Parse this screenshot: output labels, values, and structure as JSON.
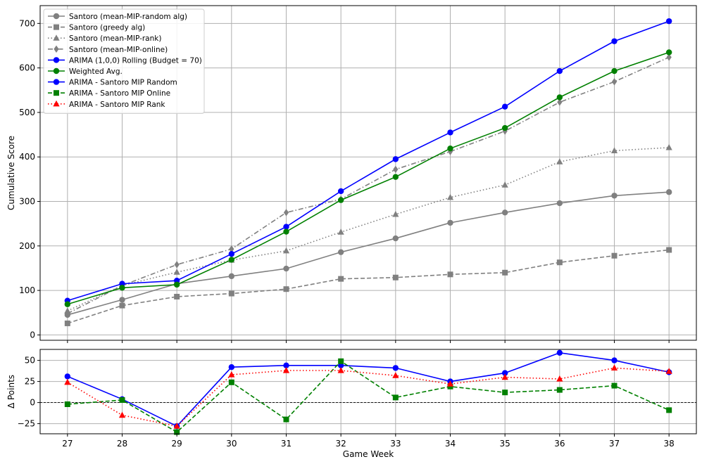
{
  "chart_data": [
    {
      "type": "line",
      "title": "",
      "xlabel": "",
      "ylabel": "Cumulative Score",
      "ylim": [
        -12,
        740
      ],
      "xlim": [
        26.5,
        38.5
      ],
      "yticks": [
        0,
        100,
        200,
        300,
        400,
        500,
        600,
        700
      ],
      "grid": true,
      "legend_position": "top-left",
      "x": [
        27,
        28,
        29,
        30,
        31,
        32,
        33,
        34,
        35,
        36,
        37,
        38
      ],
      "series": [
        {
          "name": "Santoro (mean-MIP-random alg)",
          "color": "#808080",
          "line": "solid",
          "marker": "circle",
          "values": [
            45,
            79,
            115,
            132,
            149,
            186,
            217,
            252,
            275,
            296,
            313,
            321
          ]
        },
        {
          "name": "Santoro (greedy alg)",
          "color": "#808080",
          "line": "dashed",
          "marker": "square",
          "values": [
            26,
            66,
            86,
            93,
            103,
            126,
            129,
            136,
            140,
            163,
            178,
            191
          ]
        },
        {
          "name": "Santoro (mean-MIP-rank)",
          "color": "#808080",
          "line": "dotted",
          "marker": "triangle",
          "values": [
            54,
            111,
            141,
            168,
            189,
            231,
            271,
            309,
            337,
            389,
            414,
            421
          ]
        },
        {
          "name": "Santoro (mean-MIP-online)",
          "color": "#808080",
          "line": "dashdot",
          "marker": "diamond",
          "values": [
            48,
            111,
            158,
            193,
            275,
            305,
            372,
            412,
            458,
            523,
            569,
            624
          ]
        },
        {
          "name": "ARIMA (1,0,0) Rolling (Budget = 70)",
          "color": "#0000ff",
          "line": "solid",
          "marker": "circle",
          "values": [
            77,
            115,
            122,
            182,
            243,
            323,
            395,
            455,
            513,
            593,
            660,
            705
          ]
        },
        {
          "name": "Weighted Avg.",
          "color": "#008000",
          "line": "solid",
          "marker": "circle",
          "values": [
            69,
            106,
            113,
            169,
            232,
            303,
            355,
            419,
            465,
            534,
            593,
            635
          ]
        }
      ]
    },
    {
      "type": "line",
      "title": "",
      "xlabel": "Game Week",
      "ylabel": "Δ Points",
      "ylim": [
        -37,
        63
      ],
      "xlim": [
        26.5,
        38.5
      ],
      "yticks": [
        -25,
        0,
        25,
        50
      ],
      "xticks": [
        27,
        28,
        29,
        30,
        31,
        32,
        33,
        34,
        35,
        36,
        37,
        38
      ],
      "grid": true,
      "zero_line": true,
      "x": [
        27,
        28,
        29,
        30,
        31,
        32,
        33,
        34,
        35,
        36,
        37,
        38
      ],
      "series": [
        {
          "name": "ARIMA - Santoro MIP Random",
          "color": "#0000ff",
          "line": "solid",
          "marker": "circle",
          "values": [
            31,
            4,
            -28,
            42,
            44,
            44,
            41,
            25,
            35,
            59,
            50,
            36
          ]
        },
        {
          "name": "ARIMA - Santoro MIP Online",
          "color": "#008000",
          "line": "dashed",
          "marker": "square",
          "values": [
            -2,
            3,
            -35,
            24,
            -20,
            49,
            6,
            19,
            12,
            15,
            20,
            -9
          ]
        },
        {
          "name": "ARIMA - Santoro MIP Rank",
          "color": "#ff0000",
          "line": "dotted",
          "marker": "triangle",
          "values": [
            24,
            -15,
            -28,
            33,
            38,
            38,
            32,
            22,
            30,
            28,
            41,
            37
          ]
        }
      ]
    }
  ]
}
